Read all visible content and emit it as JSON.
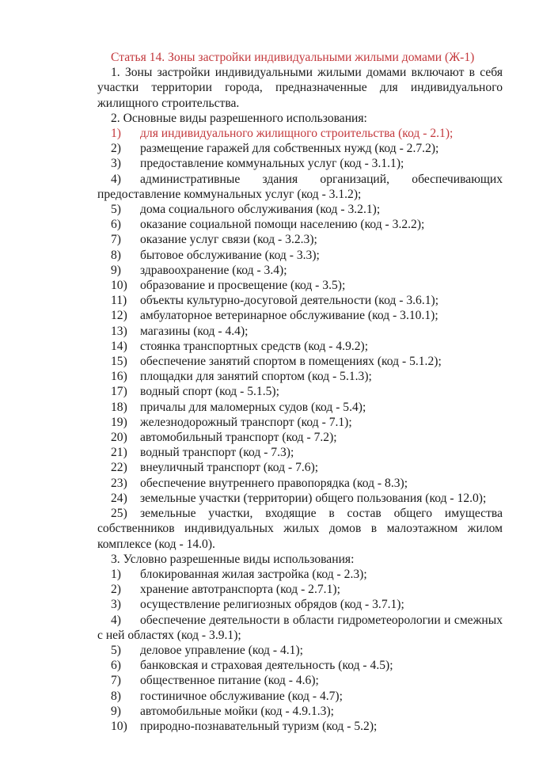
{
  "title": "Статья 14. Зоны застройки индивидуальными жилыми домами (Ж-1)",
  "para1": "1. Зоны застройки индивидуальными жилыми домами включают в себя участки территории города, предназначенные для индивидуального жилищного строительства.",
  "section2_heading": "2. Основные виды разрешенного использования:",
  "section2_items": [
    {
      "num": "1)",
      "text": "для индивидуального жилищного строительства (код - 2.1);",
      "highlight": true
    },
    {
      "num": "2)",
      "text": "размещение гаражей для собственных нужд (код - 2.7.2);"
    },
    {
      "num": "3)",
      "text": "предоставление коммунальных услуг (код - 3.1.1);"
    },
    {
      "num": "4)",
      "text": "административные здания организаций, обеспечивающих предоставление коммунальных услуг (код - 3.1.2);"
    },
    {
      "num": "5)",
      "text": "дома социального обслуживания (код - 3.2.1);"
    },
    {
      "num": "6)",
      "text": "оказание социальной помощи населению (код - 3.2.2);"
    },
    {
      "num": "7)",
      "text": "оказание услуг связи (код - 3.2.3);"
    },
    {
      "num": "8)",
      "text": "бытовое обслуживание (код - 3.3);"
    },
    {
      "num": "9)",
      "text": "здравоохранение (код - 3.4);"
    },
    {
      "num": "10)",
      "text": "образование и просвещение (код - 3.5);"
    },
    {
      "num": "11)",
      "text": "объекты культурно-досуговой деятельности (код - 3.6.1);"
    },
    {
      "num": "12)",
      "text": "амбулаторное ветеринарное обслуживание (код - 3.10.1);"
    },
    {
      "num": "13)",
      "text": "магазины (код - 4.4);"
    },
    {
      "num": "14)",
      "text": "стоянка транспортных средств (код - 4.9.2);"
    },
    {
      "num": "15)",
      "text": "обеспечение занятий спортом в помещениях (код - 5.1.2);"
    },
    {
      "num": "16)",
      "text": "площадки для занятий спортом (код - 5.1.3);"
    },
    {
      "num": "17)",
      "text": "водный спорт (код - 5.1.5);"
    },
    {
      "num": "18)",
      "text": "причалы для маломерных судов (код - 5.4);"
    },
    {
      "num": "19)",
      "text": "железнодорожный транспорт (код - 7.1);"
    },
    {
      "num": "20)",
      "text": "автомобильный транспорт (код - 7.2);"
    },
    {
      "num": "21)",
      "text": "водный транспорт (код - 7.3);"
    },
    {
      "num": "22)",
      "text": "внеуличный транспорт (код - 7.6);"
    },
    {
      "num": "23)",
      "text": "обеспечение внутреннего правопорядка (код - 8.3);"
    },
    {
      "num": "24)",
      "text": "земельные участки (территории) общего пользования (код - 12.0);"
    },
    {
      "num": "25)",
      "text": "земельные участки, входящие в состав общего имущества собственников индивидуальных жилых домов в малоэтажном жилом комплексе (код - 14.0)."
    }
  ],
  "section3_heading": "3. Условно разрешенные виды использования:",
  "section3_items": [
    {
      "num": "1)",
      "text": "блокированная жилая застройка (код - 2.3);"
    },
    {
      "num": "2)",
      "text": "хранение автотранспорта (код - 2.7.1);"
    },
    {
      "num": "3)",
      "text": "осуществление религиозных обрядов (код - 3.7.1);"
    },
    {
      "num": "4)",
      "text": "обеспечение деятельности в области гидрометеорологии и смежных с ней областях (код - 3.9.1);"
    },
    {
      "num": "5)",
      "text": "деловое управление (код - 4.1);"
    },
    {
      "num": "6)",
      "text": "банковская и страховая деятельность (код - 4.5);"
    },
    {
      "num": "7)",
      "text": "общественное питание (код - 4.6);"
    },
    {
      "num": "8)",
      "text": "гостиничное обслуживание (код - 4.7);"
    },
    {
      "num": "9)",
      "text": "автомобильные мойки (код - 4.9.1.3);"
    },
    {
      "num": "10)",
      "text": "природно-познавательный туризм (код - 5.2);"
    }
  ],
  "colors": {
    "highlight": "#c3383c",
    "text": "#1a1a1a"
  }
}
